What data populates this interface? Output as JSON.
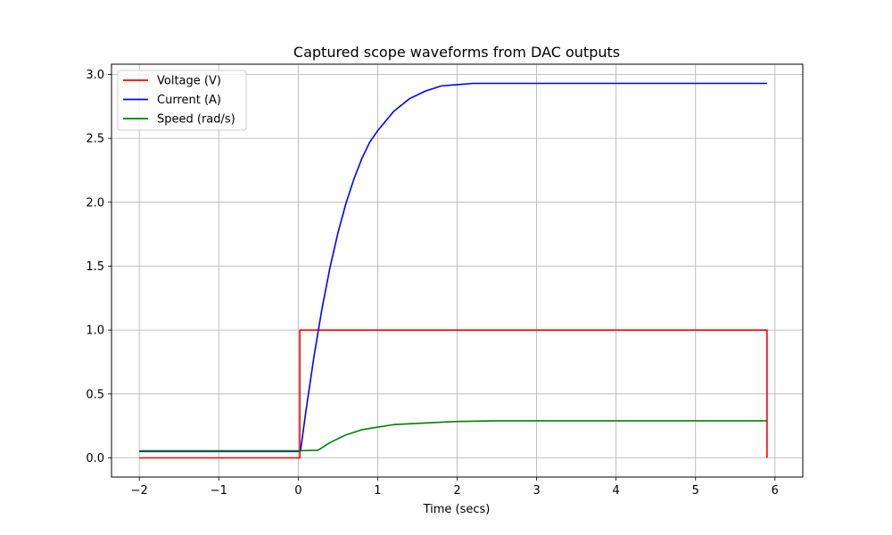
{
  "chart_data": {
    "type": "line",
    "title": "Captured scope waveforms from DAC outputs",
    "xlabel": "Time (secs)",
    "ylabel": "",
    "xlim": [
      -2.35,
      6.35
    ],
    "ylim": [
      -0.15,
      3.08
    ],
    "xticks": [
      -2,
      -1,
      0,
      1,
      2,
      3,
      4,
      5,
      6
    ],
    "xtick_labels": [
      "−2",
      "−1",
      "0",
      "1",
      "2",
      "3",
      "4",
      "5",
      "6"
    ],
    "yticks": [
      0.0,
      0.5,
      1.0,
      1.5,
      2.0,
      2.5,
      3.0
    ],
    "ytick_labels": [
      "0.0",
      "0.5",
      "1.0",
      "1.5",
      "2.0",
      "2.5",
      "3.0"
    ],
    "grid": true,
    "legend_position": "upper-left",
    "series": [
      {
        "name": "Voltage (V)",
        "color": "#ff0000",
        "x": [
          -2.0,
          0.0,
          0.02,
          0.02,
          5.9,
          5.9
        ],
        "y": [
          0.0,
          0.0,
          0.0,
          1.0,
          1.0,
          0.0
        ]
      },
      {
        "name": "Current (A)",
        "color": "#0000ff",
        "x": [
          -2.0,
          -1.5,
          -1.0,
          -0.5,
          0.0,
          0.03,
          0.1,
          0.2,
          0.3,
          0.4,
          0.5,
          0.6,
          0.7,
          0.8,
          0.9,
          1.0,
          1.2,
          1.4,
          1.6,
          1.8,
          2.0,
          2.2,
          2.5,
          3.0,
          3.5,
          4.0,
          4.5,
          5.0,
          5.5,
          5.9
        ],
        "y": [
          0.05,
          0.05,
          0.05,
          0.05,
          0.05,
          0.06,
          0.38,
          0.8,
          1.17,
          1.49,
          1.76,
          1.99,
          2.18,
          2.34,
          2.47,
          2.56,
          2.71,
          2.81,
          2.87,
          2.91,
          2.92,
          2.93,
          2.93,
          2.93,
          2.93,
          2.93,
          2.93,
          2.93,
          2.93,
          2.93
        ]
      },
      {
        "name": "Speed (rad/s)",
        "color": "#008000",
        "x": [
          -2.0,
          -1.0,
          0.0,
          0.25,
          0.4,
          0.6,
          0.8,
          1.0,
          1.2,
          1.5,
          2.0,
          2.5,
          3.0,
          4.0,
          5.0,
          5.9
        ],
        "y": [
          0.055,
          0.055,
          0.055,
          0.06,
          0.12,
          0.18,
          0.22,
          0.24,
          0.26,
          0.27,
          0.285,
          0.29,
          0.29,
          0.29,
          0.29,
          0.29
        ]
      }
    ]
  }
}
